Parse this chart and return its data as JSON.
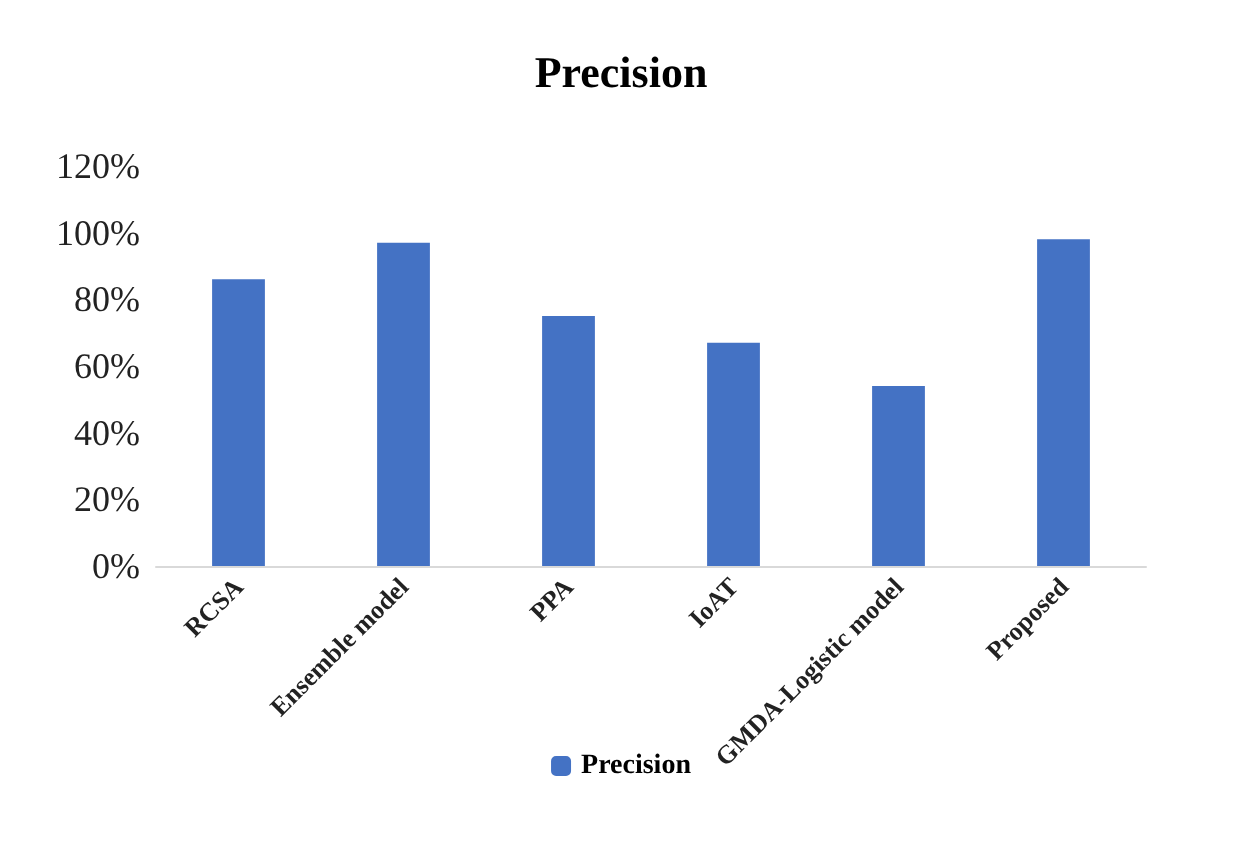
{
  "chart_data": {
    "type": "bar",
    "title": "Precision",
    "categories": [
      "RCSA",
      "Ensemble model",
      "PPA",
      "IoAT",
      "GMDA-Logistic model",
      "Proposed"
    ],
    "series": [
      {
        "name": "Precision",
        "color": "#4472c4",
        "values": [
          86,
          97,
          75,
          67,
          54,
          98
        ]
      }
    ],
    "ylim": [
      0,
      120
    ],
    "yticks": [
      {
        "value": 0,
        "label": "0%"
      },
      {
        "value": 20,
        "label": "20%"
      },
      {
        "value": 40,
        "label": "40%"
      },
      {
        "value": 60,
        "label": "60%"
      },
      {
        "value": 80,
        "label": "80%"
      },
      {
        "value": 100,
        "label": "100%"
      },
      {
        "value": 120,
        "label": "120%"
      }
    ],
    "grid": false,
    "legend": "bottom"
  }
}
